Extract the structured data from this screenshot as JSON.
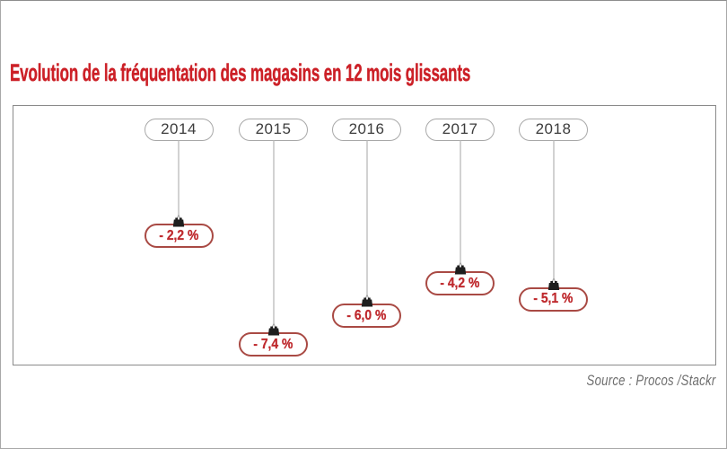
{
  "page": {
    "title": "Evolution de la fréquentation des magasins en 12 mois glissants",
    "source": "Source : Procos /Stackr"
  },
  "chart_data": {
    "type": "scatter",
    "variant": "hanging-tag-infographic",
    "title": "Evolution de la fréquentation des magasins en 12 mois glissants",
    "categories": [
      "2014",
      "2015",
      "2016",
      "2017",
      "2018"
    ],
    "values": [
      -2.2,
      -7.4,
      -6.0,
      -4.2,
      -5.1
    ],
    "value_labels": [
      "- 2,2 %",
      "- 7,4 %",
      "- 6,0 %",
      "- 4,2 %",
      "- 5,1 %"
    ],
    "unit": "%",
    "source": "Source : Procos /Stackr",
    "legend": "none",
    "grid": false,
    "items": [
      {
        "year": "2014",
        "value": -2.2,
        "label": "- 2,2 %"
      },
      {
        "year": "2015",
        "value": -7.4,
        "label": "- 7,4 %"
      },
      {
        "year": "2016",
        "value": -6.0,
        "label": "- 6,0 %"
      },
      {
        "year": "2017",
        "value": -4.2,
        "label": "- 4,2 %"
      },
      {
        "year": "2018",
        "value": -5.1,
        "label": "- 5,1 %"
      }
    ],
    "colors": {
      "title_red": "#cc2027",
      "value_text_red": "#bf2a2e",
      "value_border_red": "#a94a44",
      "clip_black": "#1e1e1e",
      "frame_gray": "#8a8a8a",
      "year_border_gray": "#a8a8a8",
      "line_gray": "#b4b4b4",
      "year_text_gray": "#3c3c3c",
      "source_gray": "#6e6e6e"
    }
  }
}
